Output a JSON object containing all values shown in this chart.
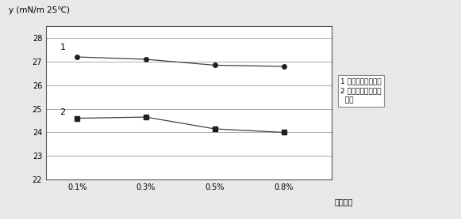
{
  "x_labels": [
    "0.1%",
    "0.3%",
    "0.5%",
    "0.8%"
  ],
  "x_values": [
    0,
    1,
    2,
    3
  ],
  "line1_values": [
    27.2,
    27.1,
    26.85,
    26.8
  ],
  "line2_values": [
    24.6,
    24.65,
    24.15,
    24.0
  ],
  "line1_label": "1",
  "line2_label": "2",
  "line1_marker": "o",
  "line2_marker": "s",
  "ylabel": "y (mN/m 25℃)",
  "xlabel": "添加比例",
  "ylim": [
    22,
    28.5
  ],
  "yticks": [
    22,
    23,
    24,
    25,
    26,
    27,
    28
  ],
  "legend_line1": "1 纯丙烯酸酯流平剑",
  "legend_line2": "2 含氟类丙烯酸酯流",
  "legend_line3": "  平剑",
  "bg_color": "#e8e8e8",
  "plot_bg_color": "#ffffff",
  "line_color": "#404040",
  "marker_color": "#202020",
  "marker_size": 4,
  "line_width": 0.9,
  "grid_color": "#888888",
  "border_color": "#555555",
  "font_size_tick": 7,
  "font_size_label": 7.5,
  "font_size_legend": 6.5,
  "font_size_number": 8
}
